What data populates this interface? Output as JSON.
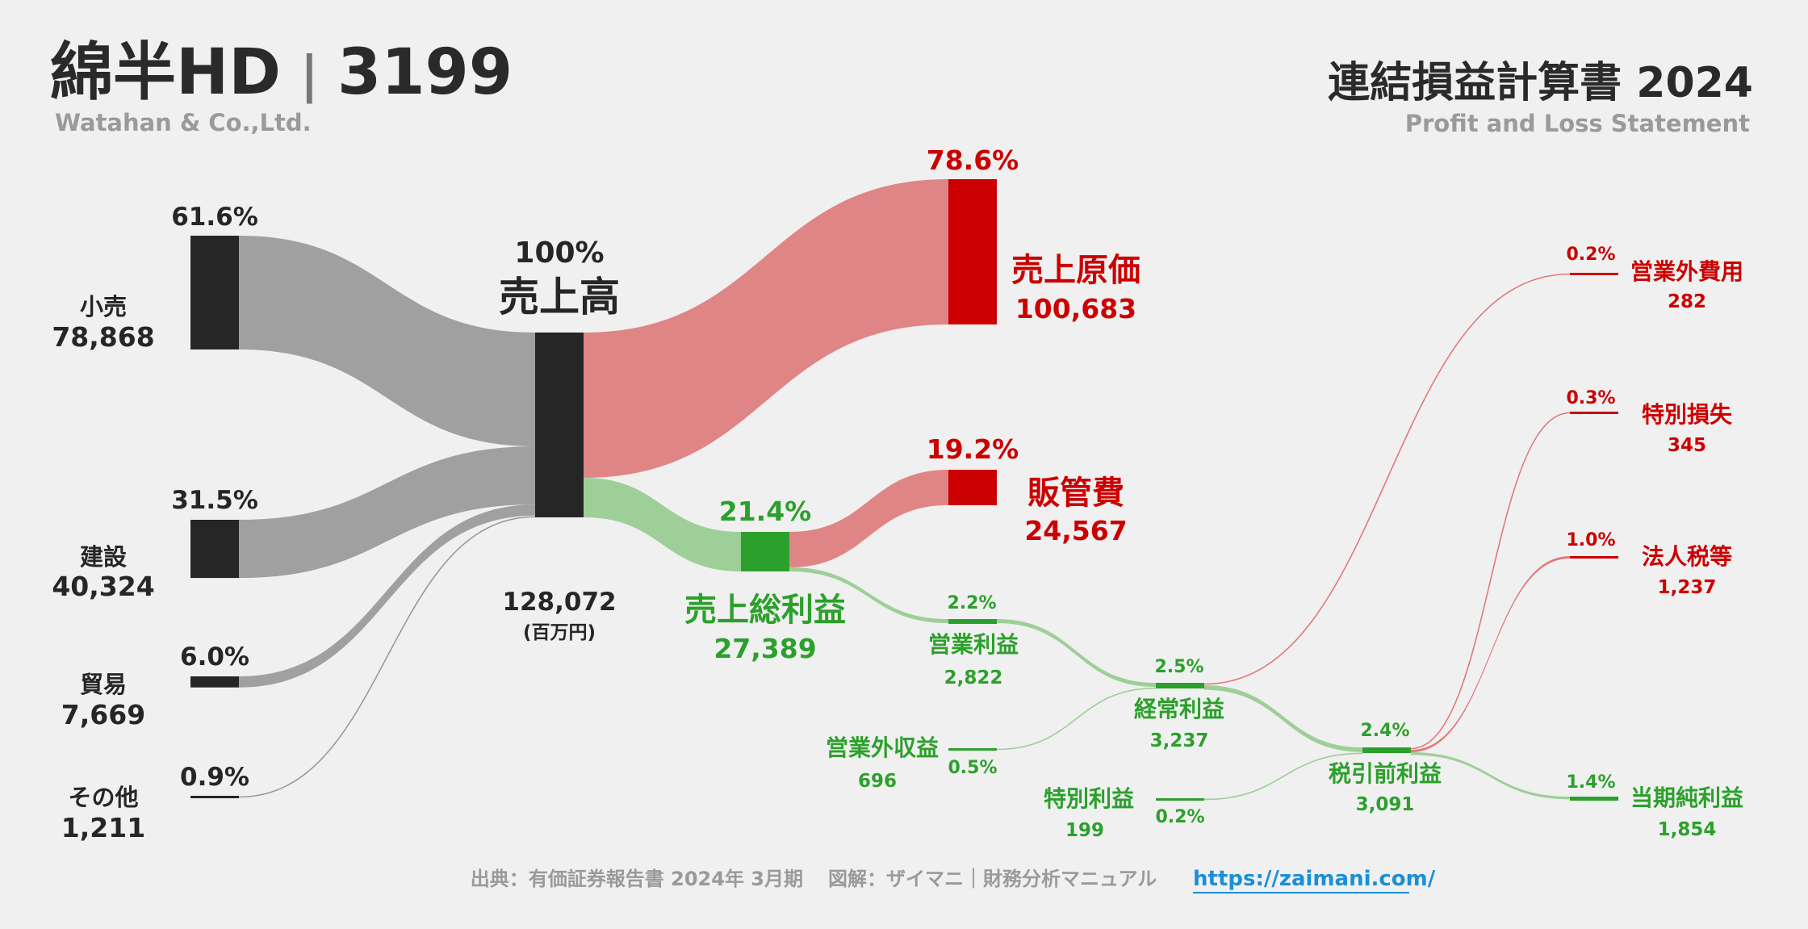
{
  "header": {
    "company": "綿半HD",
    "separator": "|",
    "ticker": "3199",
    "company_en": "Watahan & Co.,Ltd.",
    "title": "連結損益計算書 2024",
    "title_en": "Profit and Loss Statement"
  },
  "footer": {
    "source": "出典：有価証券報告書 2024年 3月期",
    "diagram": "図解：ザイマニ｜財務分析マニュアル",
    "url": "https://zaimani.com/"
  },
  "colors": {
    "background": "#f0f0f0",
    "node_dark": "#262626",
    "flow_gray": "#a0a0a0",
    "cost_red": "#cc0000",
    "cost_flow": "#e08585",
    "profit_green": "#2ca02c",
    "profit_flow": "#9ecf98",
    "muted_text": "#9a9a9a"
  },
  "chart_data": {
    "type": "sankey",
    "unit": "(百万円)",
    "nodes": [
      {
        "id": "retail",
        "label": "小売",
        "value": "78,868",
        "pct": "61.6%"
      },
      {
        "id": "construction",
        "label": "建設",
        "value": "40,324",
        "pct": "31.5%"
      },
      {
        "id": "trade",
        "label": "貿易",
        "value": "7,669",
        "pct": "6.0%"
      },
      {
        "id": "other",
        "label": "その他",
        "value": "1,211",
        "pct": "0.9%"
      },
      {
        "id": "revenue",
        "label": "売上高",
        "value": "128,072",
        "pct": "100%"
      },
      {
        "id": "cogs",
        "label": "売上原価",
        "value": "100,683",
        "pct": "78.6%"
      },
      {
        "id": "gross_profit",
        "label": "売上総利益",
        "value": "27,389",
        "pct": "21.4%"
      },
      {
        "id": "sga",
        "label": "販管費",
        "value": "24,567",
        "pct": "19.2%"
      },
      {
        "id": "operating_income",
        "label": "営業利益",
        "value": "2,822",
        "pct": "2.2%"
      },
      {
        "id": "non_op_income",
        "label": "営業外収益",
        "value": "696",
        "pct": "0.5%"
      },
      {
        "id": "non_op_expense",
        "label": "営業外費用",
        "value": "282",
        "pct": "0.2%"
      },
      {
        "id": "ordinary_income",
        "label": "経常利益",
        "value": "3,237",
        "pct": "2.5%"
      },
      {
        "id": "extraordinary_income",
        "label": "特別利益",
        "value": "199",
        "pct": "0.2%"
      },
      {
        "id": "extraordinary_loss",
        "label": "特別損失",
        "value": "345",
        "pct": "0.3%"
      },
      {
        "id": "pretax_income",
        "label": "税引前利益",
        "value": "3,091",
        "pct": "2.4%"
      },
      {
        "id": "income_taxes",
        "label": "法人税等",
        "value": "1,237",
        "pct": "1.0%"
      },
      {
        "id": "net_income",
        "label": "当期純利益",
        "value": "1,854",
        "pct": "1.4%"
      }
    ],
    "links": [
      {
        "source": "retail",
        "target": "revenue",
        "value": 78868
      },
      {
        "source": "construction",
        "target": "revenue",
        "value": 40324
      },
      {
        "source": "trade",
        "target": "revenue",
        "value": 7669
      },
      {
        "source": "other",
        "target": "revenue",
        "value": 1211
      },
      {
        "source": "revenue",
        "target": "cogs",
        "value": 100683
      },
      {
        "source": "revenue",
        "target": "gross_profit",
        "value": 27389
      },
      {
        "source": "gross_profit",
        "target": "sga",
        "value": 24567
      },
      {
        "source": "gross_profit",
        "target": "operating_income",
        "value": 2822
      },
      {
        "source": "operating_income",
        "target": "ordinary_income",
        "value": 2822
      },
      {
        "source": "non_op_income",
        "target": "ordinary_income",
        "value": 696
      },
      {
        "source": "ordinary_income",
        "target": "non_op_expense",
        "value": 282
      },
      {
        "source": "ordinary_income",
        "target": "pretax_income",
        "value": 3237
      },
      {
        "source": "extraordinary_income",
        "target": "pretax_income",
        "value": 199
      },
      {
        "source": "pretax_income",
        "target": "extraordinary_loss",
        "value": 345
      },
      {
        "source": "pretax_income",
        "target": "income_taxes",
        "value": 1237
      },
      {
        "source": "pretax_income",
        "target": "net_income",
        "value": 1854
      }
    ]
  }
}
